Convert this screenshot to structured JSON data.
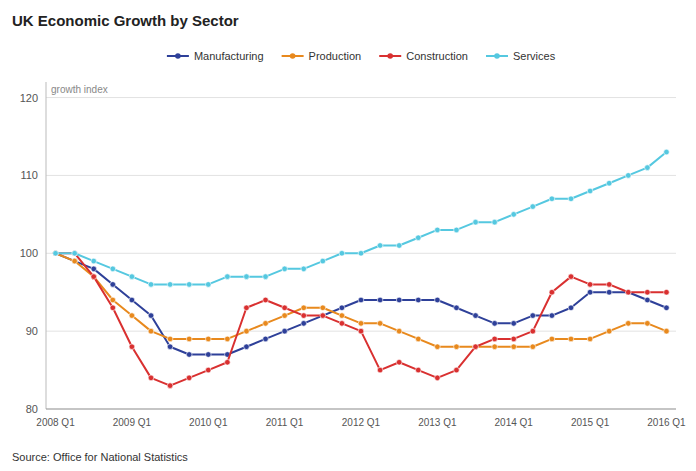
{
  "chart_data": {
    "type": "line",
    "title": "UK Economic Growth by Sector",
    "subtitle": "Source: Office for National Statistics",
    "ylabel": "growth index",
    "categories": [
      "2008 Q1",
      null,
      null,
      null,
      "2009 Q1",
      null,
      null,
      null,
      "2010 Q1",
      null,
      null,
      null,
      "2011 Q1",
      null,
      null,
      null,
      "2012 Q1",
      null,
      null,
      null,
      "2013 Q1",
      null,
      null,
      null,
      "2014 Q1",
      null,
      null,
      null,
      "2015 Q1",
      null,
      null,
      null,
      "2016 Q1"
    ],
    "series": [
      {
        "name": "Manufacturing",
        "color": "#2e4099",
        "marker": "circle",
        "values": [
          100,
          99,
          98,
          96,
          94,
          92,
          88,
          87,
          87,
          87,
          88,
          89,
          90,
          91,
          92,
          93,
          94,
          94,
          94,
          94,
          94,
          93,
          92,
          91,
          91,
          92,
          92,
          93,
          95,
          95,
          95,
          94,
          93
        ]
      },
      {
        "name": "Production",
        "color": "#e8891d",
        "marker": "circle",
        "values": [
          100,
          99,
          97,
          94,
          92,
          90,
          89,
          89,
          89,
          89,
          90,
          91,
          92,
          93,
          93,
          92,
          91,
          91,
          90,
          89,
          88,
          88,
          88,
          88,
          88,
          88,
          89,
          89,
          89,
          90,
          91,
          91,
          90
        ]
      },
      {
        "name": "Construction",
        "color": "#d93030",
        "marker": "circle",
        "values": [
          100,
          100,
          97,
          93,
          88,
          84,
          83,
          84,
          85,
          86,
          93,
          94,
          93,
          92,
          92,
          91,
          90,
          85,
          86,
          85,
          84,
          85,
          88,
          89,
          89,
          90,
          95,
          97,
          96,
          96,
          95,
          95,
          95
        ]
      },
      {
        "name": "Services",
        "color": "#55c8e0",
        "marker": "circle",
        "values": [
          100,
          100,
          99,
          98,
          97,
          96,
          96,
          96,
          96,
          97,
          97,
          97,
          98,
          98,
          99,
          100,
          100,
          101,
          101,
          102,
          103,
          103,
          104,
          104,
          105,
          106,
          107,
          107,
          108,
          109,
          110,
          111,
          113
        ]
      }
    ],
    "ylim": [
      80,
      122
    ],
    "yticks": [
      80,
      90,
      100,
      110,
      120
    ],
    "grid": true,
    "legend": "top"
  }
}
